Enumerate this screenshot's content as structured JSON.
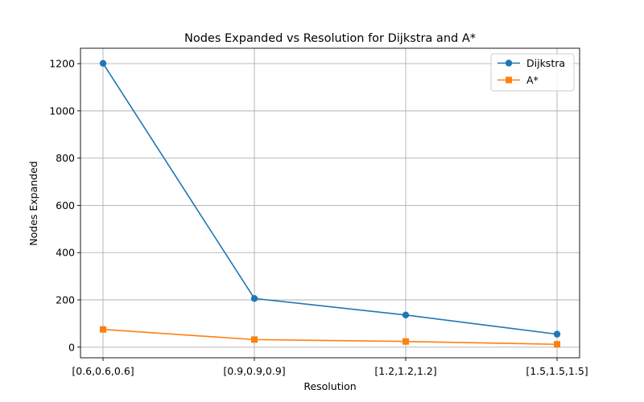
{
  "chart_data": {
    "type": "line",
    "title": "Nodes Expanded vs Resolution for Dijkstra and A*",
    "xlabel": "Resolution",
    "ylabel": "Nodes Expanded",
    "categories": [
      "[0.6,0.6,0.6]",
      "[0.9,0.9,0.9]",
      "[1.2,1.2,1.2]",
      "[1.5,1.5,1.5]"
    ],
    "ylim": [
      -45,
      1265
    ],
    "yticks": [
      0,
      200,
      400,
      600,
      800,
      1000,
      1200
    ],
    "grid": true,
    "legend_position": "upper right",
    "series": [
      {
        "name": "Dijkstra",
        "values": [
          1201,
          206,
          136,
          55
        ],
        "color": "#1f77b4",
        "marker": "circle"
      },
      {
        "name": "A*",
        "values": [
          75,
          32,
          24,
          12
        ],
        "color": "#ff7f0e",
        "marker": "square"
      }
    ]
  }
}
